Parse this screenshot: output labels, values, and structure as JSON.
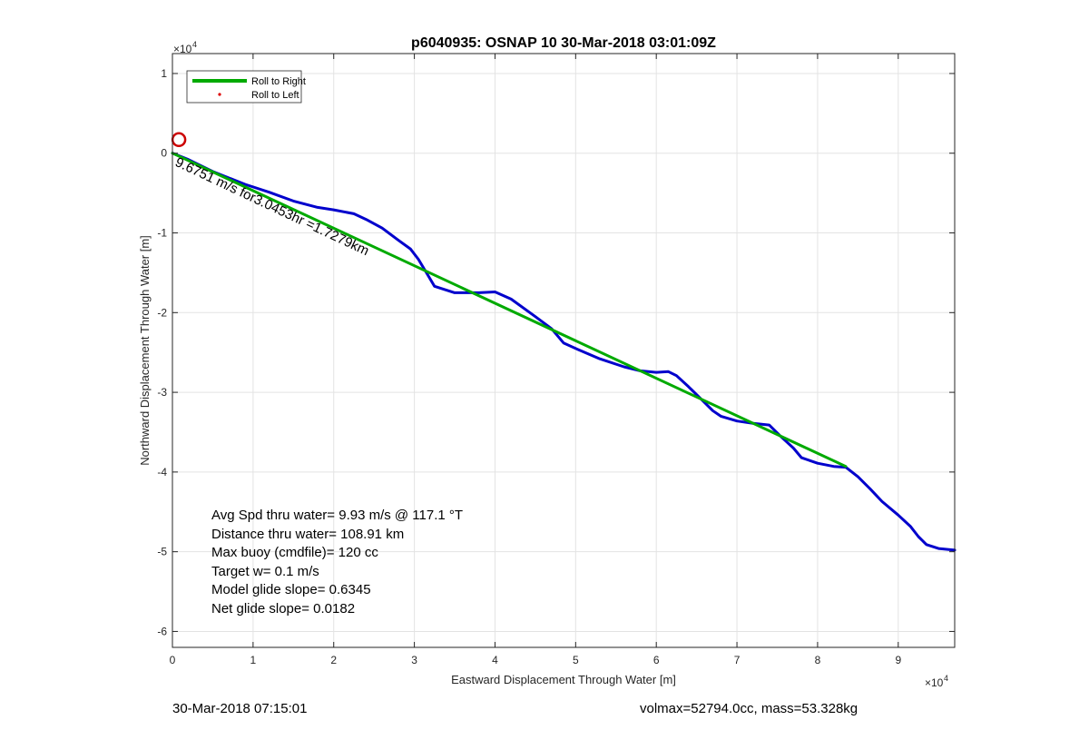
{
  "chart_data": {
    "type": "line",
    "title": "p6040935: OSNAP 10 30-Mar-2018 03:01:09Z",
    "xlabel": "Eastward Displacement Through Water [m]",
    "ylabel": "Northward Displacement Through Water [m]",
    "x_exponent_label": "×10",
    "x_exponent": "4",
    "y_exponent_label": "×10",
    "y_exponent": "4",
    "xlim": [
      0,
      97000
    ],
    "ylim": [
      -62000,
      12500
    ],
    "xticks": [
      0,
      10000,
      20000,
      30000,
      40000,
      50000,
      60000,
      70000,
      80000,
      90000
    ],
    "xtick_labels": [
      "0",
      "1",
      "2",
      "3",
      "4",
      "5",
      "6",
      "7",
      "8",
      "9"
    ],
    "yticks": [
      10000,
      0,
      -10000,
      -20000,
      -30000,
      -40000,
      -50000,
      -60000
    ],
    "ytick_labels": [
      "1",
      "0",
      "-1",
      "-2",
      "-3",
      "-4",
      "-5",
      "-6"
    ],
    "grid": true,
    "legend": {
      "placement": "top-left",
      "entries": [
        {
          "label": "Roll to Right",
          "color": "#00aa00",
          "style": "line"
        },
        {
          "label": "Roll to Left",
          "color": "#dd0000",
          "style": "dot"
        }
      ]
    },
    "series": [
      {
        "color": "#0000cc",
        "x": [
          0,
          2000,
          5000,
          9000,
          12000,
          15000,
          18000,
          20000,
          22500,
          24000,
          26000,
          28000,
          29500,
          30500,
          31500,
          32500,
          35000,
          38000,
          40000,
          42000,
          45000,
          47000,
          48500,
          50000,
          53000,
          56000,
          58000,
          60000,
          61500,
          62500,
          64000,
          65500,
          67000,
          68000,
          70000,
          72000,
          74000,
          75500,
          77000,
          78000,
          80000,
          82000,
          83500,
          85000,
          86500,
          88000,
          90000,
          91500,
          92500,
          93500,
          95000,
          97000
        ],
        "y": [
          0,
          -800,
          -2300,
          -3900,
          -4900,
          -6000,
          -6800,
          -7100,
          -7600,
          -8300,
          -9400,
          -10900,
          -12000,
          -13300,
          -15000,
          -16700,
          -17500,
          -17500,
          -17400,
          -18300,
          -20500,
          -22000,
          -23800,
          -24500,
          -25800,
          -26800,
          -27300,
          -27500,
          -27400,
          -27900,
          -29300,
          -30800,
          -32300,
          -33000,
          -33600,
          -33900,
          -34100,
          -35600,
          -37000,
          -38200,
          -38900,
          -39300,
          -39400,
          -40600,
          -42100,
          -43700,
          -45400,
          -46800,
          -48100,
          -49100,
          -49600,
          -49800
        ]
      },
      {
        "name": "Roll to Right",
        "color": "#00aa00",
        "x": [
          0,
          83500
        ],
        "y": [
          0,
          -39300
        ]
      }
    ],
    "end_marker": {
      "x": 800,
      "y": 1700,
      "color": "#cc0000"
    },
    "annotation_vector": "9.6751 m/s for3.0453hr =1.7279km",
    "stats": [
      "Avg Spd thru water=  9.93 m/s @ 117.1 °T",
      "Distance thru water= 108.91 km",
      "Max buoy (cmdfile)= 120 cc",
      "Target w= 0.1 m/s",
      "Model glide slope= 0.6345",
      "Net glide slope= 0.0182"
    ]
  },
  "footer": {
    "left": "30-Mar-2018 07:15:01",
    "right": "volmax=52794.0cc, mass=53.328kg"
  }
}
